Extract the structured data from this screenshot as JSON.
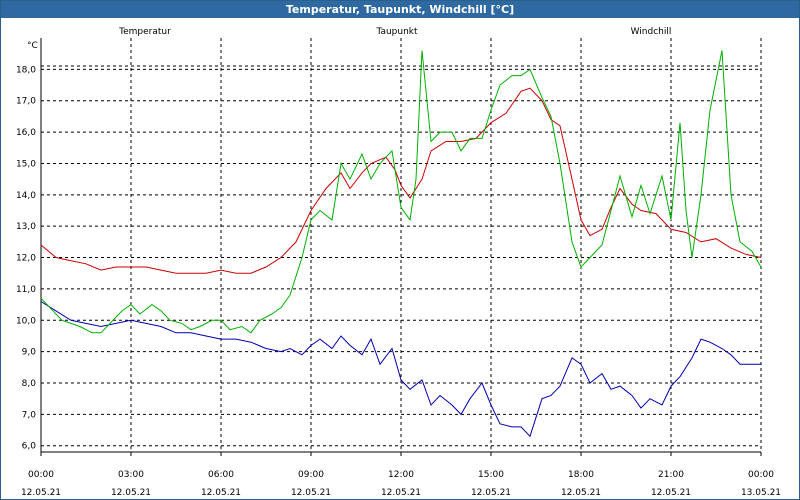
{
  "window": {
    "title": "Temperatur, Taupunkt, Windchill [°C]"
  },
  "chart_data": {
    "type": "line",
    "title": "Temperatur, Taupunkt, Windchill [°C]",
    "ylabel": "°C",
    "ylim": [
      5.8,
      19.0
    ],
    "xlim": [
      0,
      24
    ],
    "yticks": [
      6,
      7,
      8,
      9,
      10,
      11,
      12,
      13,
      14,
      15,
      16,
      17,
      18
    ],
    "ytick_labels": [
      "6,0",
      "7,0",
      "8,0",
      "9,0",
      "10,0",
      "11,0",
      "12,0",
      "13,0",
      "14,0",
      "15,0",
      "16,0",
      "17,0",
      "18,0"
    ],
    "xticks": [
      0,
      3,
      6,
      9,
      12,
      15,
      18,
      21,
      24
    ],
    "xtick_times": [
      "00:00",
      "03:00",
      "06:00",
      "09:00",
      "12:00",
      "15:00",
      "18:00",
      "21:00",
      "00:00"
    ],
    "xtick_dates": [
      "12.05.21",
      "12.05.21",
      "12.05.21",
      "12.05.21",
      "12.05.21",
      "12.05.21",
      "12.05.21",
      "12.05.21",
      "13.05.21"
    ],
    "grid": true,
    "series": [
      {
        "name": "Temperatur",
        "color": "#cc0000",
        "points": [
          [
            0,
            12.4
          ],
          [
            0.5,
            12.0
          ],
          [
            1,
            11.9
          ],
          [
            1.5,
            11.8
          ],
          [
            2,
            11.6
          ],
          [
            2.5,
            11.7
          ],
          [
            3,
            11.7
          ],
          [
            3.5,
            11.7
          ],
          [
            4,
            11.6
          ],
          [
            4.5,
            11.5
          ],
          [
            5,
            11.5
          ],
          [
            5.5,
            11.5
          ],
          [
            6,
            11.6
          ],
          [
            6.5,
            11.5
          ],
          [
            7,
            11.5
          ],
          [
            7.5,
            11.7
          ],
          [
            8,
            12.0
          ],
          [
            8.5,
            12.5
          ],
          [
            9,
            13.5
          ],
          [
            9.5,
            14.2
          ],
          [
            10,
            14.7
          ],
          [
            10.3,
            14.2
          ],
          [
            10.7,
            14.7
          ],
          [
            11,
            15.0
          ],
          [
            11.5,
            15.2
          ],
          [
            11.8,
            14.8
          ],
          [
            12,
            14.3
          ],
          [
            12.3,
            13.9
          ],
          [
            12.7,
            14.5
          ],
          [
            13,
            15.4
          ],
          [
            13.5,
            15.7
          ],
          [
            14,
            15.7
          ],
          [
            14.5,
            15.8
          ],
          [
            15,
            16.3
          ],
          [
            15.5,
            16.6
          ],
          [
            16,
            17.3
          ],
          [
            16.3,
            17.4
          ],
          [
            16.7,
            17.0
          ],
          [
            17,
            16.4
          ],
          [
            17.3,
            16.2
          ],
          [
            17.7,
            14.5
          ],
          [
            18,
            13.2
          ],
          [
            18.3,
            12.7
          ],
          [
            18.7,
            12.9
          ],
          [
            19,
            13.6
          ],
          [
            19.3,
            14.2
          ],
          [
            19.7,
            13.7
          ],
          [
            20,
            13.5
          ],
          [
            20.5,
            13.4
          ],
          [
            21,
            12.9
          ],
          [
            21.5,
            12.8
          ],
          [
            22,
            12.5
          ],
          [
            22.5,
            12.6
          ],
          [
            23,
            12.3
          ],
          [
            23.5,
            12.1
          ],
          [
            24,
            12.0
          ]
        ]
      },
      {
        "name": "Taupunkt",
        "color": "#0000b0",
        "points": [
          [
            0,
            10.6
          ],
          [
            0.5,
            10.3
          ],
          [
            1,
            10.0
          ],
          [
            1.5,
            9.9
          ],
          [
            2,
            9.8
          ],
          [
            2.5,
            9.9
          ],
          [
            3,
            10.0
          ],
          [
            3.5,
            9.9
          ],
          [
            4,
            9.8
          ],
          [
            4.5,
            9.6
          ],
          [
            5,
            9.6
          ],
          [
            5.5,
            9.5
          ],
          [
            6,
            9.4
          ],
          [
            6.5,
            9.4
          ],
          [
            7,
            9.3
          ],
          [
            7.5,
            9.1
          ],
          [
            8,
            9.0
          ],
          [
            8.3,
            9.1
          ],
          [
            8.7,
            8.9
          ],
          [
            9,
            9.2
          ],
          [
            9.3,
            9.4
          ],
          [
            9.7,
            9.1
          ],
          [
            10,
            9.5
          ],
          [
            10.3,
            9.2
          ],
          [
            10.7,
            8.9
          ],
          [
            11,
            9.4
          ],
          [
            11.3,
            8.6
          ],
          [
            11.7,
            9.1
          ],
          [
            12,
            8.1
          ],
          [
            12.3,
            7.8
          ],
          [
            12.7,
            8.1
          ],
          [
            13,
            7.3
          ],
          [
            13.3,
            7.6
          ],
          [
            13.7,
            7.3
          ],
          [
            14,
            7.0
          ],
          [
            14.3,
            7.5
          ],
          [
            14.7,
            8.0
          ],
          [
            15,
            7.3
          ],
          [
            15.3,
            6.7
          ],
          [
            15.7,
            6.6
          ],
          [
            16,
            6.6
          ],
          [
            16.3,
            6.3
          ],
          [
            16.7,
            7.5
          ],
          [
            17,
            7.6
          ],
          [
            17.3,
            7.9
          ],
          [
            17.7,
            8.8
          ],
          [
            18,
            8.6
          ],
          [
            18.3,
            8.0
          ],
          [
            18.7,
            8.3
          ],
          [
            19,
            7.8
          ],
          [
            19.3,
            7.9
          ],
          [
            19.7,
            7.6
          ],
          [
            20,
            7.2
          ],
          [
            20.3,
            7.5
          ],
          [
            20.7,
            7.3
          ],
          [
            21,
            7.9
          ],
          [
            21.3,
            8.2
          ],
          [
            21.7,
            8.8
          ],
          [
            22,
            9.4
          ],
          [
            22.3,
            9.3
          ],
          [
            22.7,
            9.1
          ],
          [
            23,
            8.9
          ],
          [
            23.3,
            8.6
          ],
          [
            23.7,
            8.6
          ],
          [
            24,
            8.6
          ]
        ]
      },
      {
        "name": "Windchill",
        "color": "#00b000",
        "points": [
          [
            0,
            10.7
          ],
          [
            0.3,
            10.4
          ],
          [
            0.7,
            10.0
          ],
          [
            1,
            9.9
          ],
          [
            1.3,
            9.8
          ],
          [
            1.7,
            9.6
          ],
          [
            2,
            9.6
          ],
          [
            2.3,
            9.9
          ],
          [
            2.7,
            10.3
          ],
          [
            3,
            10.5
          ],
          [
            3.3,
            10.2
          ],
          [
            3.7,
            10.5
          ],
          [
            4,
            10.3
          ],
          [
            4.3,
            10.0
          ],
          [
            4.7,
            9.9
          ],
          [
            5,
            9.7
          ],
          [
            5.3,
            9.8
          ],
          [
            5.7,
            10.0
          ],
          [
            6,
            10.0
          ],
          [
            6.3,
            9.7
          ],
          [
            6.7,
            9.8
          ],
          [
            7,
            9.6
          ],
          [
            7.3,
            10.0
          ],
          [
            7.7,
            10.2
          ],
          [
            8,
            10.4
          ],
          [
            8.3,
            10.8
          ],
          [
            8.7,
            12.0
          ],
          [
            9,
            13.2
          ],
          [
            9.3,
            13.5
          ],
          [
            9.7,
            13.2
          ],
          [
            10,
            15.0
          ],
          [
            10.3,
            14.5
          ],
          [
            10.7,
            15.3
          ],
          [
            11,
            14.5
          ],
          [
            11.3,
            15.0
          ],
          [
            11.7,
            15.4
          ],
          [
            12,
            13.6
          ],
          [
            12.3,
            13.2
          ],
          [
            12.5,
            14.5
          ],
          [
            12.7,
            18.6
          ],
          [
            13,
            15.7
          ],
          [
            13.3,
            16.0
          ],
          [
            13.7,
            16.0
          ],
          [
            14,
            15.4
          ],
          [
            14.3,
            15.8
          ],
          [
            14.7,
            15.8
          ],
          [
            15,
            16.7
          ],
          [
            15.3,
            17.5
          ],
          [
            15.7,
            17.8
          ],
          [
            16,
            17.8
          ],
          [
            16.3,
            18.0
          ],
          [
            16.7,
            17.1
          ],
          [
            17,
            16.5
          ],
          [
            17.3,
            15.0
          ],
          [
            17.7,
            12.5
          ],
          [
            18,
            11.7
          ],
          [
            18.3,
            12.0
          ],
          [
            18.7,
            12.4
          ],
          [
            19,
            13.5
          ],
          [
            19.3,
            14.6
          ],
          [
            19.7,
            13.3
          ],
          [
            20,
            14.3
          ],
          [
            20.3,
            13.4
          ],
          [
            20.7,
            14.6
          ],
          [
            21,
            13.2
          ],
          [
            21.3,
            16.3
          ],
          [
            21.5,
            13.5
          ],
          [
            21.7,
            12.0
          ],
          [
            22,
            14.0
          ],
          [
            22.3,
            16.7
          ],
          [
            22.7,
            18.6
          ],
          [
            23,
            14.0
          ],
          [
            23.3,
            12.5
          ],
          [
            23.7,
            12.2
          ],
          [
            24,
            11.7
          ]
        ]
      }
    ]
  }
}
